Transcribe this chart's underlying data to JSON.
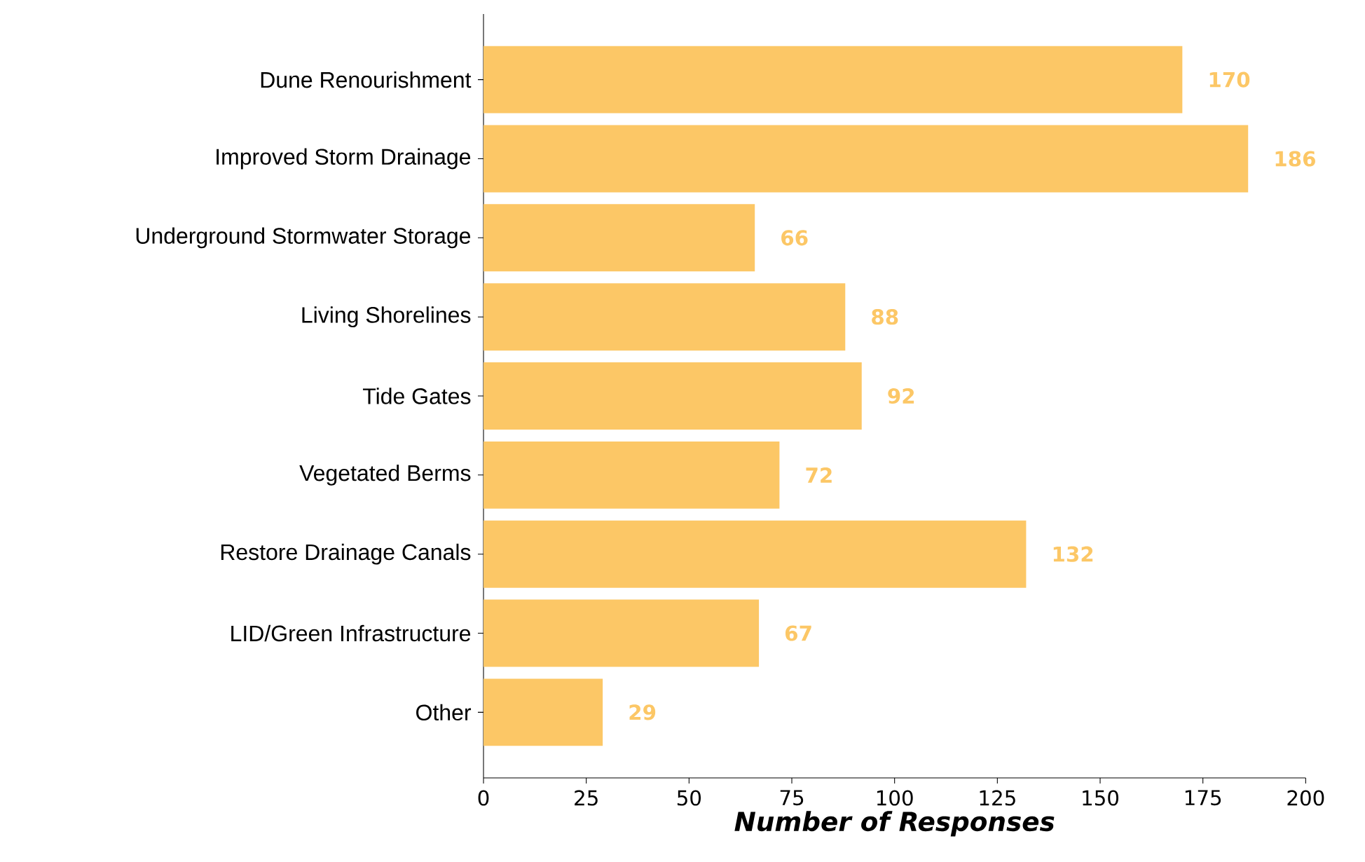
{
  "chart_data": {
    "type": "bar",
    "orientation": "horizontal",
    "xlabel": "Number of Responses",
    "categories": [
      "Dune Renourishment",
      "Improved Storm Drainage",
      "Underground Stormwater Storage",
      "Living Shorelines",
      "Tide Gates",
      "Vegetated Berms",
      "Restore Drainage Canals",
      "LID/Green Infrastructure",
      "Other"
    ],
    "values": [
      170,
      186,
      66,
      88,
      92,
      72,
      132,
      67,
      29
    ],
    "color": "#fcc766",
    "xlim": [
      0,
      200
    ],
    "xticks": [
      0,
      25,
      50,
      75,
      100,
      125,
      150,
      175,
      200
    ],
    "data_labels": true,
    "grid": false
  }
}
